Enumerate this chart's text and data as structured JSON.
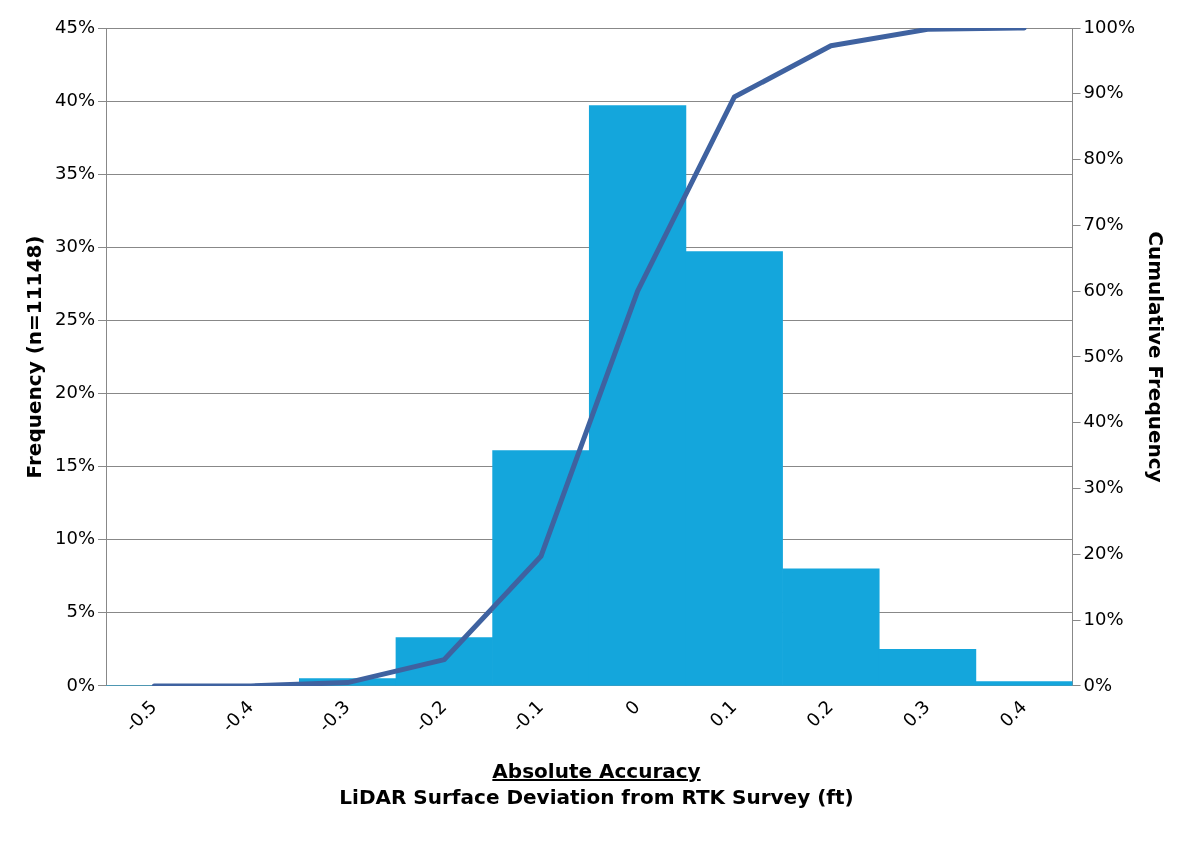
{
  "chart_data": {
    "type": "bar",
    "xlabel": "Absolute Accuracy",
    "ylabel": "Frequency (n=11148)",
    "y2label": "Cumulative Frequency",
    "annotations": [
      "LiDAR Surface Deviation from RTK Survey (ft)"
    ],
    "categories": [
      "-0.5",
      "-0.4",
      "-0.3",
      "-0.2",
      "-0.1",
      "0",
      "0.1",
      "0.2",
      "0.3",
      "0.4"
    ],
    "series": [
      {
        "color": "#14a6dc",
        "values": [
          0,
          0,
          0.5,
          3.3,
          16.1,
          39.7,
          29.7,
          8.0,
          2.5,
          0.3
        ]
      },
      {
        "type": "line",
        "axis": "y2",
        "color": "#3f62a0",
        "values": [
          0,
          0,
          0.5,
          4,
          19.7,
          60,
          89.5,
          97.3,
          99.8,
          100
        ]
      }
    ],
    "ylim": [
      0,
      45
    ],
    "yticks": [
      {
        "value": 0,
        "label": "0%"
      },
      {
        "value": 5,
        "label": "5%"
      },
      {
        "value": 10,
        "label": "10%"
      },
      {
        "value": 15,
        "label": "15%"
      },
      {
        "value": 20,
        "label": "20%"
      },
      {
        "value": 25,
        "label": "25%"
      },
      {
        "value": 30,
        "label": "30%"
      },
      {
        "value": 35,
        "label": "35%"
      },
      {
        "value": 40,
        "label": "40%"
      },
      {
        "value": 45,
        "label": "45%"
      }
    ],
    "y2lim": [
      0,
      100
    ],
    "y2ticks": [
      {
        "value": 0,
        "label": "0%"
      },
      {
        "value": 10,
        "label": "10%"
      },
      {
        "value": 20,
        "label": "20%"
      },
      {
        "value": 30,
        "label": "30%"
      },
      {
        "value": 40,
        "label": "40%"
      },
      {
        "value": 50,
        "label": "50%"
      },
      {
        "value": 60,
        "label": "60%"
      },
      {
        "value": 70,
        "label": "70%"
      },
      {
        "value": 80,
        "label": "80%"
      },
      {
        "value": 90,
        "label": "90%"
      },
      {
        "value": 100,
        "label": "100%"
      }
    ],
    "grid": "y",
    "legend": false,
    "marker": "none",
    "line_style": "solid"
  }
}
